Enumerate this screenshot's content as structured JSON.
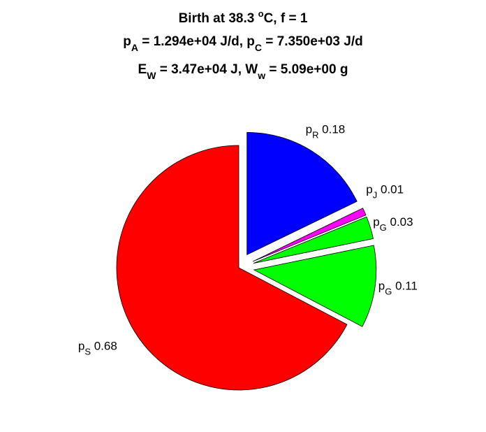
{
  "chart_data": {
    "type": "pie",
    "title": {
      "line1": {
        "text": "Birth at 38.3 ",
        "sup": "o",
        "tail": "C, f = 1"
      },
      "line2": [
        {
          "t": "p"
        },
        {
          "sub": "A"
        },
        {
          "t": " = 1.294e+04 J/d, p"
        },
        {
          "sub": "C"
        },
        {
          "t": " = 7.350e+03 J/d"
        }
      ],
      "line3": [
        {
          "t": "E"
        },
        {
          "sub": "W"
        },
        {
          "t": " = 3.47e+04 J, W"
        },
        {
          "sub": "w"
        },
        {
          "t": " = 5.09e+00 g"
        }
      ]
    },
    "slices": [
      {
        "sym": "p",
        "sub": "R",
        "value": 0.18,
        "label": "0.18",
        "color": "#0000ff",
        "exploded": true
      },
      {
        "sym": "p",
        "sub": "J",
        "value": 0.01,
        "label": "0.01",
        "color": "#ff00ff",
        "exploded": true
      },
      {
        "sym": "p",
        "sub": "G",
        "value": 0.03,
        "label": "0.03",
        "color": "#00ff00",
        "exploded": true
      },
      {
        "sym": "p",
        "sub": "G",
        "value": 0.11,
        "label": "0.11",
        "color": "#00ff00",
        "exploded": true
      },
      {
        "sym": "p",
        "sub": "S",
        "value": 0.68,
        "label": "0.68",
        "color": "#ff0000",
        "exploded": false
      }
    ]
  }
}
